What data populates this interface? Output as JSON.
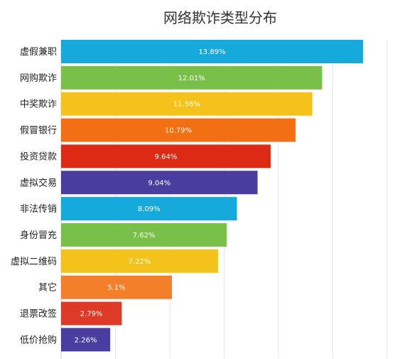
{
  "chart_data": {
    "type": "bar",
    "orientation": "horizontal",
    "title": "网络欺诈类型分布",
    "xlabel": "",
    "ylabel": "",
    "xlim": [
      0,
      15
    ],
    "grid": true,
    "legend": "none",
    "categories": [
      "虚假兼职",
      "网购欺诈",
      "中奖欺诈",
      "假冒银行",
      "投资贷款",
      "虚拟交易",
      "非法传销",
      "身份冒充",
      "虚拟二维码",
      "其它",
      "退票改签",
      "低价抢购"
    ],
    "values": [
      13.89,
      12.01,
      11.56,
      10.79,
      9.64,
      9.04,
      8.09,
      7.62,
      7.22,
      5.1,
      2.79,
      2.26
    ],
    "value_labels": [
      "13.89%",
      "12.01%",
      "11.56%",
      "10.79%",
      "9.64%",
      "9.04%",
      "8.09%",
      "7.62%",
      "7.22%",
      "5.1%",
      "2.79%",
      "2.26%"
    ],
    "colors": [
      "#15a9dc",
      "#78c04a",
      "#f5c21b",
      "#f36f14",
      "#dd2a14",
      "#4b3d9f",
      "#15a9dc",
      "#78c04a",
      "#f5c21b",
      "#f37f2a",
      "#dd3b27",
      "#4b3d9f"
    ]
  }
}
